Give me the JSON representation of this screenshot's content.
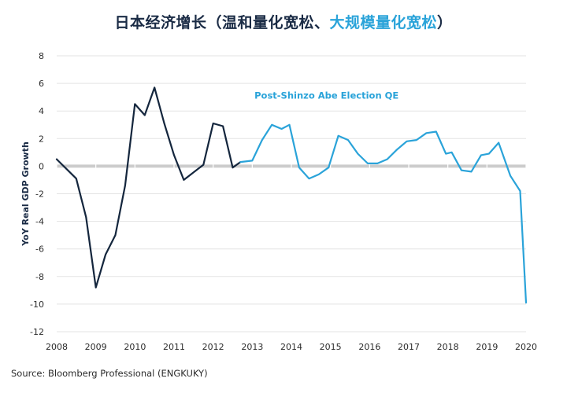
{
  "title": {
    "part1": "日本经济增长（温和量化宽松、",
    "part2": "大规模量化宽松",
    "part3": "）"
  },
  "source": "Source: Bloomberg Professional (ENGKUKY)",
  "colors": {
    "navy": "#14263d",
    "blue": "#2aa3d9",
    "grid": "#e3e3e3",
    "zero": "#cccccc"
  },
  "chart_data": {
    "type": "line",
    "title": "日本经济增长（温和量化宽松、大规模量化宽松）",
    "ylabel": "YoY Real GDP Growth",
    "xlabel": "",
    "xlim": [
      2008,
      2020
    ],
    "ylim": [
      -12,
      8
    ],
    "yticks": [
      -12,
      -10,
      -8,
      -6,
      -4,
      -2,
      0,
      2,
      4,
      6,
      8
    ],
    "xticks": [
      2008,
      2009,
      2010,
      2011,
      2012,
      2013,
      2014,
      2015,
      2016,
      2017,
      2018,
      2019,
      2020
    ],
    "annotation": {
      "text": "Post-Shinzo Abe Election QE",
      "x": 2014.9,
      "y": 4.9
    },
    "series": [
      {
        "name": "",
        "color": "#14263d",
        "x": [
          2008.0,
          2008.5,
          2008.75,
          2009.0,
          2009.25,
          2009.5,
          2009.75,
          2010.0,
          2010.25,
          2010.5,
          2010.75,
          2011.0,
          2011.25,
          2011.75,
          2012.0,
          2012.25,
          2012.5,
          2012.7
        ],
        "y": [
          0.5,
          -0.9,
          -3.7,
          -8.8,
          -6.4,
          -5.0,
          -1.4,
          4.5,
          3.7,
          5.7,
          3.1,
          0.8,
          -1.0,
          0.1,
          3.1,
          2.9,
          -0.1,
          0.3
        ]
      },
      {
        "name": "",
        "color": "#2aa3d9",
        "x": [
          2012.7,
          2013.0,
          2013.25,
          2013.5,
          2013.75,
          2013.95,
          2014.2,
          2014.45,
          2014.7,
          2014.95,
          2015.2,
          2015.45,
          2015.7,
          2015.95,
          2016.2,
          2016.45,
          2016.7,
          2016.95,
          2017.2,
          2017.45,
          2017.7,
          2017.95,
          2018.1,
          2018.35,
          2018.6,
          2018.85,
          2019.05,
          2019.3,
          2019.6,
          2019.85,
          2020.0
        ],
        "y": [
          0.3,
          0.4,
          1.9,
          3.0,
          2.7,
          3.0,
          -0.1,
          -0.9,
          -0.6,
          -0.1,
          2.2,
          1.9,
          0.9,
          0.2,
          0.2,
          0.5,
          1.2,
          1.8,
          1.9,
          2.4,
          2.5,
          0.9,
          1.0,
          -0.3,
          -0.4,
          0.8,
          0.9,
          1.7,
          -0.7,
          -1.8,
          -9.9
        ]
      }
    ]
  }
}
